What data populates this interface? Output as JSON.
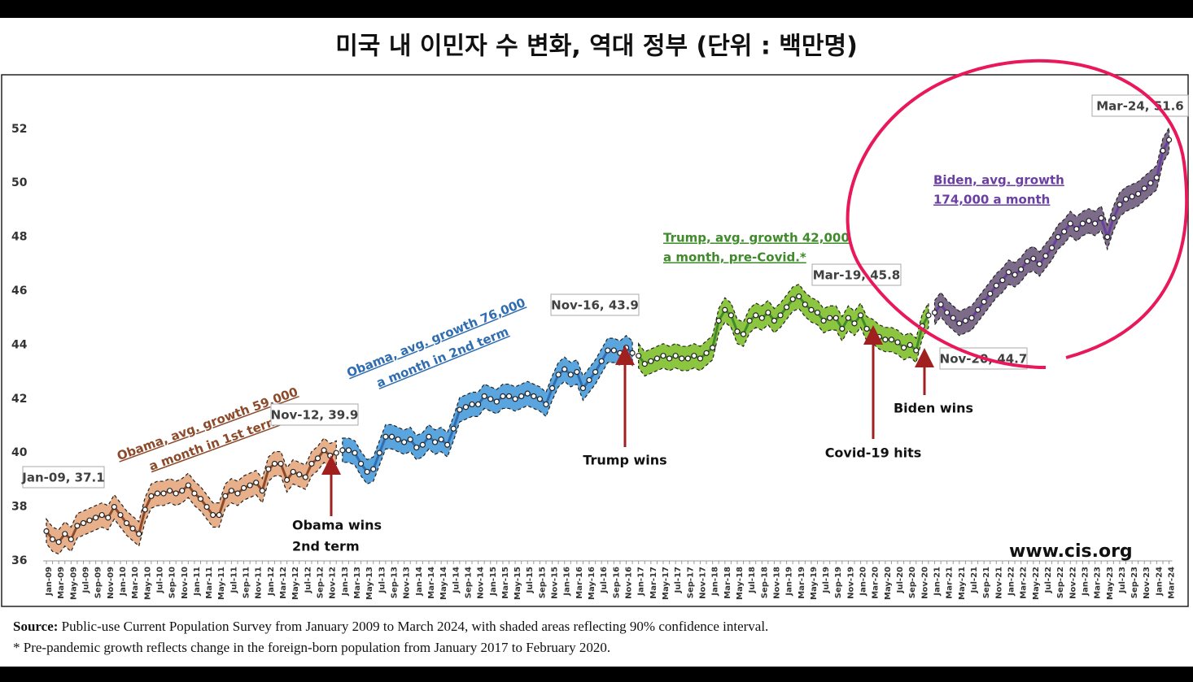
{
  "chart_data": {
    "type": "line",
    "title": "미국 내 이민자 수 변화, 역대 정부 (단위 : 백만명)",
    "categories": [
      "Jan-09",
      null,
      "Mar-09",
      null,
      "May-09",
      null,
      "Jul-09",
      null,
      "Sep-09",
      null,
      "Nov-09",
      null,
      "Jan-10",
      null,
      "Mar-10",
      null,
      "May-10",
      null,
      "Jul-10",
      null,
      "Sep-10",
      null,
      "Nov-10",
      null,
      "Jan-11",
      null,
      "Mar-11",
      null,
      "May-11",
      null,
      "Jul-11",
      null,
      "Sep-11",
      null,
      "Nov-11",
      null,
      "Jan-12",
      null,
      "Mar-12",
      null,
      "May-12",
      null,
      "Jul-12",
      null,
      "Sep-12",
      null,
      "Nov-12",
      null,
      "Jan-13",
      null,
      "Mar-13",
      null,
      "May-13",
      null,
      "Jul-13",
      null,
      "Sep-13",
      null,
      "Nov-13",
      null,
      "Jan-14",
      null,
      "Mar-14",
      null,
      "May-14",
      null,
      "Jul-14",
      null,
      "Sep-14",
      null,
      "Nov-14",
      null,
      "Jan-15",
      null,
      "Mar-15",
      null,
      "May-15",
      null,
      "Jul-15",
      null,
      "Sep-15",
      null,
      "Nov-15",
      null,
      "Jan-16",
      null,
      "Mar-16",
      null,
      "May-16",
      null,
      "Jul-16",
      null,
      "Sep-16",
      null,
      "Nov-16",
      null,
      "Jan-17",
      null,
      "Mar-17",
      null,
      "May-17",
      null,
      "Jul-17",
      null,
      "Sep-17",
      null,
      "Nov-17",
      null,
      "Jan-18",
      null,
      "Mar-18",
      null,
      "May-18",
      null,
      "Jul-18",
      null,
      "Sep-18",
      null,
      "Nov-18",
      null,
      "Jan-19",
      null,
      "Mar-19",
      null,
      "May-19",
      null,
      "Jul-19",
      null,
      "Sep-19",
      null,
      "Nov-19",
      null,
      "Jan-20",
      null,
      "Mar-20",
      null,
      "May-20",
      null,
      "Jul-20",
      null,
      "Sep-20",
      null,
      "Nov-20",
      null,
      "Jan-21",
      null,
      "Mar-21",
      null,
      "May-21",
      null,
      "Jul-21",
      null,
      "Sep-21",
      null,
      "Nov-21",
      null,
      "Jan-22",
      null,
      "Mar-22",
      null,
      "May-22",
      null,
      "Jul-22",
      null,
      "Sep-22",
      null,
      "Nov-22",
      null,
      "Jan-23",
      null,
      "Mar-23",
      null,
      "May-23",
      null,
      "Jul-23",
      null,
      "Sep-23",
      null,
      "Nov-23",
      null,
      "Jan-24",
      null,
      "Mar-24"
    ],
    "series": [
      {
        "name": [
          "Obama, avg. growth 59,000",
          "a month in 1st  term"
        ],
        "color": "#8b4a2b",
        "band_color": "#e8b08a",
        "values": [
          37.1,
          36.8,
          36.7,
          37.0,
          36.8,
          37.3,
          37.4,
          37.5,
          37.6,
          37.7,
          37.6,
          38.0,
          37.7,
          37.4,
          37.2,
          37.0,
          37.9,
          38.4,
          38.5,
          38.5,
          38.6,
          38.5,
          38.6,
          38.8,
          38.5,
          38.3,
          38.0,
          37.7,
          37.7,
          38.4,
          38.6,
          38.5,
          38.7,
          38.8,
          38.9,
          38.6,
          39.4,
          39.6,
          39.6,
          39.0,
          39.3,
          39.2,
          39.1,
          39.6,
          39.8,
          40.1,
          39.9,
          40.0,
          null,
          null,
          null,
          null,
          null,
          null,
          null,
          null,
          null,
          null,
          null,
          null,
          null,
          null,
          null,
          null,
          null,
          null,
          null,
          null,
          null,
          null,
          null,
          null,
          null,
          null,
          null,
          null,
          null,
          null,
          null,
          null,
          null,
          null,
          null,
          null,
          null,
          null,
          null,
          null,
          null,
          null,
          null,
          null,
          null,
          null,
          null,
          null,
          null,
          null,
          null,
          null,
          null,
          null,
          null,
          null,
          null,
          null,
          null,
          null,
          null,
          null,
          null,
          null,
          null,
          null,
          null,
          null,
          null,
          null,
          null,
          null,
          null,
          null,
          null,
          null,
          null,
          null,
          null,
          null,
          null,
          null,
          null,
          null,
          null,
          null,
          null,
          null,
          null,
          null,
          null,
          null,
          null,
          null,
          null,
          null,
          null,
          null,
          null,
          null,
          null,
          null,
          null,
          null,
          null,
          null,
          null,
          null,
          null,
          null,
          null,
          null,
          null,
          null,
          null,
          null,
          null,
          null,
          null,
          null,
          null,
          null,
          null,
          null,
          null,
          null,
          null,
          null,
          null,
          null,
          null,
          null,
          null,
          null,
          null
        ]
      },
      {
        "name": [
          "Obama, avg. growth 76,000",
          "a month in 2nd term"
        ],
        "color": "#2f6db0",
        "band_color": "#5aa5de",
        "values": [
          null,
          null,
          null,
          null,
          null,
          null,
          null,
          null,
          null,
          null,
          null,
          null,
          null,
          null,
          null,
          null,
          null,
          null,
          null,
          null,
          null,
          null,
          null,
          null,
          null,
          null,
          null,
          null,
          null,
          null,
          null,
          null,
          null,
          null,
          null,
          null,
          null,
          null,
          null,
          null,
          null,
          null,
          null,
          null,
          null,
          null,
          null,
          null,
          40.1,
          40.1,
          40.0,
          39.6,
          39.3,
          39.4,
          40.0,
          40.6,
          40.6,
          40.5,
          40.4,
          40.5,
          40.2,
          40.3,
          40.6,
          40.4,
          40.5,
          40.3,
          40.9,
          41.6,
          41.7,
          41.8,
          41.8,
          42.1,
          42.0,
          41.9,
          42.1,
          42.1,
          42.0,
          42.1,
          42.2,
          42.1,
          42.0,
          41.8,
          42.4,
          42.9,
          43.1,
          42.9,
          43.0,
          42.4,
          42.7,
          43.0,
          43.4,
          43.8,
          43.8,
          43.7,
          43.9,
          43.7,
          null,
          null,
          null,
          null,
          null,
          null,
          null,
          null,
          null,
          null,
          null,
          null,
          null,
          null,
          null,
          null,
          null,
          null,
          null,
          null,
          null,
          null,
          null,
          null,
          null,
          null,
          null,
          null,
          null,
          null,
          null,
          null,
          null,
          null,
          null,
          null,
          null,
          null,
          null,
          null,
          null,
          null,
          null,
          null,
          null,
          null,
          null,
          null,
          null,
          null,
          null,
          null,
          null,
          null,
          null,
          null,
          null,
          null,
          null,
          null,
          null,
          null,
          null,
          null,
          null,
          null,
          null,
          null,
          null,
          null,
          null,
          null,
          null,
          null,
          null,
          null,
          null,
          null,
          null,
          null,
          null,
          null,
          null,
          null,
          null,
          null,
          null
        ]
      },
      {
        "name": [
          "Trump, avg. growth 42,000",
          "a month, pre-Covid.*"
        ],
        "color": "#3f8a2a",
        "band_color": "#8cc540",
        "values": [
          null,
          null,
          null,
          null,
          null,
          null,
          null,
          null,
          null,
          null,
          null,
          null,
          null,
          null,
          null,
          null,
          null,
          null,
          null,
          null,
          null,
          null,
          null,
          null,
          null,
          null,
          null,
          null,
          null,
          null,
          null,
          null,
          null,
          null,
          null,
          null,
          null,
          null,
          null,
          null,
          null,
          null,
          null,
          null,
          null,
          null,
          null,
          null,
          null,
          null,
          null,
          null,
          null,
          null,
          null,
          null,
          null,
          null,
          null,
          null,
          null,
          null,
          null,
          null,
          null,
          null,
          null,
          null,
          null,
          null,
          null,
          null,
          null,
          null,
          null,
          null,
          null,
          null,
          null,
          null,
          null,
          null,
          null,
          null,
          null,
          null,
          null,
          null,
          null,
          null,
          null,
          null,
          null,
          null,
          null,
          null,
          43.6,
          43.3,
          43.4,
          43.5,
          43.6,
          43.5,
          43.6,
          43.5,
          43.5,
          43.6,
          43.5,
          43.7,
          43.9,
          44.9,
          45.3,
          45.1,
          44.5,
          44.4,
          44.9,
          45.1,
          45.0,
          45.2,
          44.9,
          45.1,
          45.4,
          45.7,
          45.8,
          45.5,
          45.3,
          45.2,
          44.9,
          45.0,
          45.0,
          44.6,
          45.0,
          44.8,
          45.1,
          44.6,
          44.5,
          44.3,
          44.2,
          44.2,
          44.1,
          43.9,
          44.0,
          43.8,
          44.7,
          45.1,
          null,
          null,
          null,
          null,
          null,
          null,
          null,
          null,
          null,
          null,
          null,
          null,
          null,
          null,
          null,
          null,
          null,
          null,
          null,
          null,
          null,
          null,
          null,
          null,
          null,
          null,
          null,
          null,
          null,
          null,
          null,
          null,
          null,
          null,
          null,
          null,
          null,
          null,
          null
        ]
      },
      {
        "name": [
          "Biden, avg. growth",
          "174,000 a month"
        ],
        "color": "#6a3fa0",
        "band_color": "#7d6b8a",
        "values": [
          null,
          null,
          null,
          null,
          null,
          null,
          null,
          null,
          null,
          null,
          null,
          null,
          null,
          null,
          null,
          null,
          null,
          null,
          null,
          null,
          null,
          null,
          null,
          null,
          null,
          null,
          null,
          null,
          null,
          null,
          null,
          null,
          null,
          null,
          null,
          null,
          null,
          null,
          null,
          null,
          null,
          null,
          null,
          null,
          null,
          null,
          null,
          null,
          null,
          null,
          null,
          null,
          null,
          null,
          null,
          null,
          null,
          null,
          null,
          null,
          null,
          null,
          null,
          null,
          null,
          null,
          null,
          null,
          null,
          null,
          null,
          null,
          null,
          null,
          null,
          null,
          null,
          null,
          null,
          null,
          null,
          null,
          null,
          null,
          null,
          null,
          null,
          null,
          null,
          null,
          null,
          null,
          null,
          null,
          null,
          null,
          null,
          null,
          null,
          null,
          null,
          null,
          null,
          null,
          null,
          null,
          null,
          null,
          null,
          null,
          null,
          null,
          null,
          null,
          null,
          null,
          null,
          null,
          null,
          null,
          null,
          null,
          null,
          null,
          null,
          null,
          null,
          null,
          null,
          null,
          null,
          null,
          null,
          null,
          null,
          null,
          null,
          null,
          null,
          null,
          null,
          null,
          null,
          null,
          45.2,
          45.5,
          45.2,
          45.0,
          44.8,
          44.9,
          45.0,
          45.3,
          45.6,
          45.9,
          46.2,
          46.4,
          46.7,
          46.6,
          46.8,
          47.1,
          47.2,
          47.0,
          47.3,
          47.6,
          48.0,
          48.2,
          48.5,
          48.3,
          48.5,
          48.6,
          48.5,
          48.7,
          48.0,
          48.7,
          49.2,
          49.4,
          49.5,
          49.6,
          49.8,
          50.0,
          50.2,
          51.2,
          51.6
        ]
      }
    ],
    "ci": 0.45,
    "ylim": [
      36,
      54
    ],
    "yticks": [
      36,
      38,
      40,
      42,
      44,
      46,
      48,
      50,
      52
    ],
    "callouts": [
      "Jan-09,  37.1",
      "Nov-12,  39.9",
      "Nov-16,  43.9",
      "Mar-19,  45.8",
      "Nov-20,  44.7",
      "Mar-24,  51.6"
    ],
    "events": [
      [
        "Obama wins",
        "2nd term"
      ],
      [
        "Trump wins"
      ],
      [
        "Covid-19 hits"
      ],
      [
        "Biden wins"
      ]
    ],
    "watermark": "www.cis.org",
    "source": {
      "label": "Source:",
      "text": " Public-use Current Population Survey from January 2009 to March 2024, with shaded areas reflecting 90% confidence interval."
    },
    "note": "* Pre-pandemic growth reflects change in the foreign-born population from January 2017 to February 2020."
  }
}
